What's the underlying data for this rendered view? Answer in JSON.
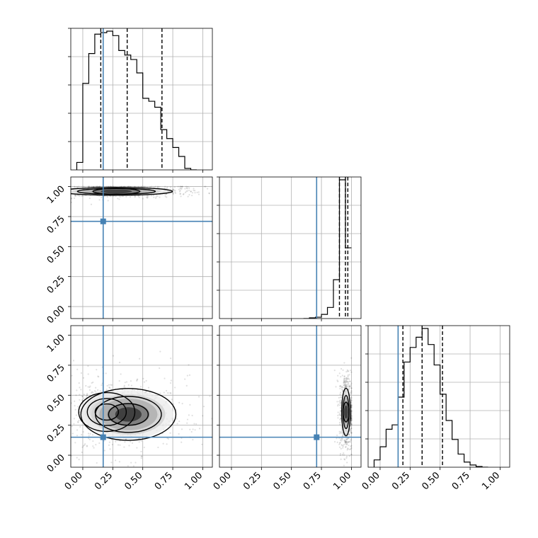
{
  "chart_data": {
    "type": "corner",
    "n_params": 3,
    "range": [
      -0.1,
      1.08
    ],
    "ticks": [
      0.0,
      0.25,
      0.5,
      0.75,
      1.0
    ],
    "tick_labels": [
      "0.00",
      "0.25",
      "0.50",
      "0.75",
      "1.00"
    ],
    "truths": [
      0.17,
      0.71,
      0.15
    ],
    "quantiles": [
      [
        0.15,
        0.37,
        0.66
      ],
      [
        0.9,
        0.95,
        0.97
      ],
      [
        0.19,
        0.35,
        0.52
      ]
    ],
    "histograms": [
      {
        "edges_start": -0.05,
        "bin_width": 0.05,
        "counts": [
          0.05,
          0.58,
          0.78,
          0.91,
          0.92,
          0.93,
          0.9,
          0.8,
          0.77,
          0.74,
          0.65,
          0.48,
          0.46,
          0.42,
          0.27,
          0.21,
          0.15,
          0.09,
          0.01,
          0.0
        ]
      },
      {
        "edges_start": 0.6,
        "bin_width": 0.05,
        "counts": [
          0.0,
          0.005,
          0.01,
          0.03,
          0.08,
          0.28,
          1.0,
          0.51
        ],
        "left_edge_drawn": 0.6
      },
      {
        "edges_start": -0.05,
        "bin_width": 0.05,
        "counts": [
          0.05,
          0.14,
          0.26,
          0.29,
          0.48,
          0.72,
          0.82,
          0.89,
          0.95,
          0.84,
          0.7,
          0.5,
          0.32,
          0.19,
          0.09,
          0.035,
          0.015,
          0.005,
          0.0
        ]
      }
    ],
    "pairs": [
      {
        "row": 1,
        "col": 0,
        "center": [
          0.28,
          0.96
        ],
        "spread": [
          0.28,
          0.022
        ],
        "blobs": [
          [
            0.28,
            0.96,
            0.26,
            0.018
          ]
        ]
      },
      {
        "row": 2,
        "col": 0,
        "center": [
          0.3,
          0.36
        ],
        "spread": [
          0.25,
          0.14
        ],
        "blobs": [
          [
            0.2,
            0.36,
            0.13,
            0.09
          ],
          [
            0.38,
            0.34,
            0.22,
            0.12
          ]
        ]
      },
      {
        "row": 2,
        "col": 1,
        "center": [
          0.95,
          0.36
        ],
        "spread": [
          0.025,
          0.13
        ],
        "blobs": [
          [
            0.955,
            0.36,
            0.02,
            0.11
          ]
        ]
      }
    ],
    "colors": {
      "truth": "#4682b4",
      "grid": "#b0b0b0",
      "ink": "#000000"
    }
  }
}
